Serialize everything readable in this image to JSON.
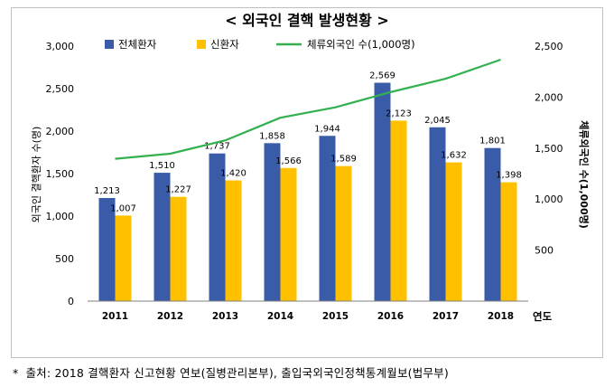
{
  "chart_data": {
    "type": "bar",
    "title": "< 외국인 결핵 발생현황 >",
    "xlabel": "연도",
    "ylabel": "외국인 결핵환자 수(명)",
    "y2label": "체류외국인 수(1,000명)",
    "categories": [
      "2011",
      "2012",
      "2013",
      "2014",
      "2015",
      "2016",
      "2017",
      "2018"
    ],
    "ylim": [
      0,
      3000
    ],
    "y_ticks": [
      "0",
      "500",
      "1,000",
      "1,500",
      "2,000",
      "2,500",
      "3,000"
    ],
    "y2lim": [
      0,
      2500
    ],
    "y2_ticks": [
      "500",
      "1,000",
      "1,500",
      "2,000",
      "2,500"
    ],
    "grid": false,
    "legend_position": "top",
    "series": [
      {
        "name": "전체환자",
        "type": "bar",
        "axis": "left",
        "color": "#3a5ca8",
        "values": [
          1213,
          1510,
          1737,
          1858,
          1944,
          2569,
          2045,
          1801
        ],
        "labels": [
          "1,213",
          "1,510",
          "1,737",
          "1,858",
          "1,944",
          "2,569",
          "2,045",
          "1,801"
        ]
      },
      {
        "name": "신환자",
        "type": "bar",
        "axis": "left",
        "color": "#ffc000",
        "values": [
          1007,
          1227,
          1420,
          1566,
          1589,
          2123,
          1632,
          1398
        ],
        "labels": [
          "1,007",
          "1,227",
          "1,420",
          "1,566",
          "1,589",
          "2,123",
          "1,632",
          "1,398"
        ]
      },
      {
        "name": "체류외국인 수(1,000명)",
        "type": "line",
        "axis": "right",
        "color": "#33b050",
        "values": [
          1395,
          1445,
          1576,
          1798,
          1900,
          2049,
          2180,
          2367
        ]
      }
    ]
  },
  "footnote": {
    "marker": "*",
    "text": "출처: 2018 결핵환자 신고현황 연보(질병관리본부), 출입국외국인정책통계월보(법무부)"
  }
}
